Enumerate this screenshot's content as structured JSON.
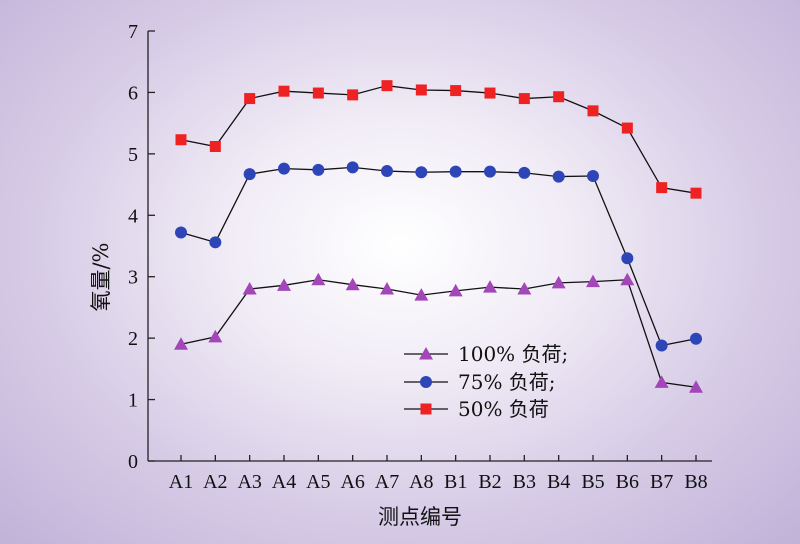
{
  "chart_data": {
    "type": "line",
    "xlabel": "测点编号",
    "ylabel": "氧量/%",
    "ylim": [
      0,
      7
    ],
    "yticks": [
      "0",
      "1",
      "2",
      "3",
      "4",
      "5",
      "6",
      "7"
    ],
    "categories": [
      "A1",
      "A2",
      "A3",
      "A4",
      "A5",
      "A6",
      "A7",
      "A8",
      "B1",
      "B2",
      "B3",
      "B4",
      "B5",
      "B6",
      "B7",
      "B8"
    ],
    "legend_position": "bottom-center",
    "grid": false,
    "series": [
      {
        "name": "100% 负荷;",
        "marker": "triangle",
        "color": "#a347b8",
        "values": [
          1.9,
          2.02,
          2.8,
          2.86,
          2.95,
          2.87,
          2.8,
          2.7,
          2.77,
          2.83,
          2.8,
          2.9,
          2.92,
          2.95,
          1.28,
          1.2
        ]
      },
      {
        "name": "75% 负荷;",
        "marker": "circle",
        "color": "#2e45b8",
        "values": [
          3.72,
          3.56,
          4.67,
          4.76,
          4.74,
          4.78,
          4.72,
          4.7,
          4.71,
          4.71,
          4.69,
          4.63,
          4.64,
          3.3,
          1.88,
          1.99
        ]
      },
      {
        "name": "50% 负荷",
        "marker": "square",
        "color": "#ee2222",
        "values": [
          5.23,
          5.12,
          5.9,
          6.02,
          5.99,
          5.96,
          6.11,
          6.04,
          6.03,
          5.99,
          5.9,
          5.93,
          5.7,
          5.42,
          4.45,
          4.36
        ]
      }
    ]
  }
}
